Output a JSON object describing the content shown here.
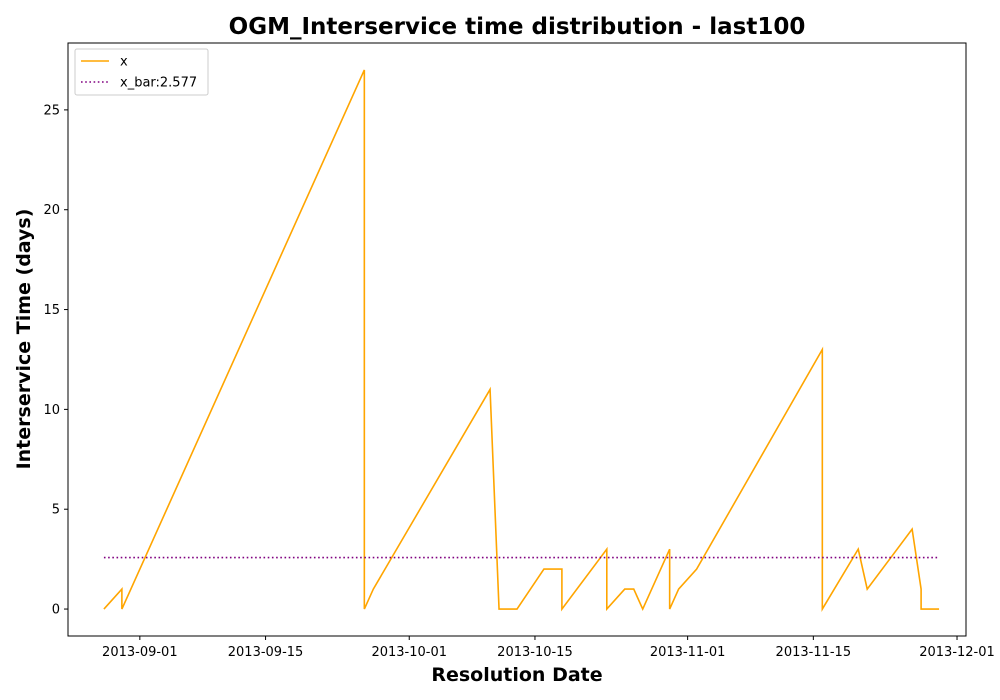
{
  "chart_data": {
    "type": "line",
    "title": "OGM_Interservice time distribution - last100",
    "xlabel": "Resolution Date",
    "ylabel": "Interservice Time (days)",
    "x_type": "date",
    "xlim": [
      "2013-08-24",
      "2013-12-02"
    ],
    "ylim": [
      -1.35,
      28.35
    ],
    "x_ticks": [
      "2013-09-01",
      "2013-09-15",
      "2013-10-01",
      "2013-10-15",
      "2013-11-01",
      "2013-11-15",
      "2013-12-01"
    ],
    "y_ticks": [
      0,
      5,
      10,
      15,
      20,
      25
    ],
    "grid": false,
    "legend_position": "top-left",
    "series": [
      {
        "name": "x",
        "color": "#FFA500",
        "style": "solid",
        "points": [
          [
            "2013-08-28",
            0
          ],
          [
            "2013-08-30",
            1
          ],
          [
            "2013-08-30",
            0
          ],
          [
            "2013-09-26",
            27
          ],
          [
            "2013-09-26",
            0
          ],
          [
            "2013-09-27",
            1
          ],
          [
            "2013-10-10",
            11
          ],
          [
            "2013-10-11",
            0
          ],
          [
            "2013-10-13",
            0
          ],
          [
            "2013-10-16",
            2
          ],
          [
            "2013-10-18",
            2
          ],
          [
            "2013-10-18",
            0
          ],
          [
            "2013-10-23",
            3
          ],
          [
            "2013-10-23",
            0
          ],
          [
            "2013-10-25",
            1
          ],
          [
            "2013-10-26",
            1
          ],
          [
            "2013-10-27",
            0
          ],
          [
            "2013-10-30",
            3
          ],
          [
            "2013-10-30",
            0
          ],
          [
            "2013-10-31",
            1
          ],
          [
            "2013-11-02",
            2
          ],
          [
            "2013-11-16",
            13
          ],
          [
            "2013-11-16",
            0
          ],
          [
            "2013-11-20",
            3
          ],
          [
            "2013-11-21",
            1
          ],
          [
            "2013-11-26",
            4
          ],
          [
            "2013-11-27",
            1
          ],
          [
            "2013-11-27",
            0
          ],
          [
            "2013-11-29",
            0
          ]
        ]
      },
      {
        "name": "x_bar:2.577",
        "color": "#800080",
        "style": "dotted",
        "points": [
          [
            "2013-08-28",
            2.577
          ],
          [
            "2013-11-29",
            2.577
          ]
        ]
      }
    ]
  }
}
